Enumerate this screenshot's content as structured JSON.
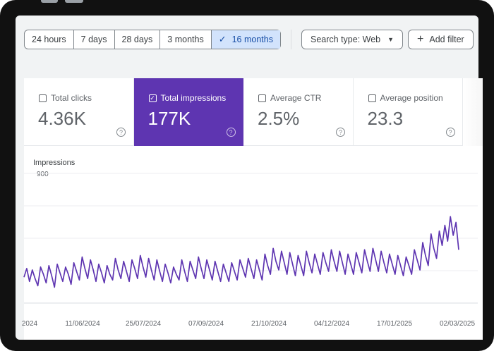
{
  "toolbar": {
    "date_ranges": [
      {
        "label": "24 hours",
        "active": false
      },
      {
        "label": "7 days",
        "active": false
      },
      {
        "label": "28 days",
        "active": false
      },
      {
        "label": "3 months",
        "active": false
      },
      {
        "label": "16 months",
        "active": true
      }
    ],
    "search_type_label": "Search type: Web",
    "add_filter_label": "Add filter"
  },
  "metrics": [
    {
      "label": "Total clicks",
      "value": "4.36K",
      "selected": false
    },
    {
      "label": "Total impressions",
      "value": "177K",
      "selected": true
    },
    {
      "label": "Average CTR",
      "value": "2.5%",
      "selected": false
    },
    {
      "label": "Average position",
      "value": "23.3",
      "selected": false
    }
  ],
  "chart_data": {
    "type": "line",
    "ylabel": "Impressions",
    "y_tick_labels": [
      "900"
    ],
    "ylim": [
      0,
      900
    ],
    "x_tick_labels": [
      "2024",
      "11/06/2024",
      "25/07/2024",
      "07/09/2024",
      "21/10/2024",
      "04/12/2024",
      "17/01/2025",
      "02/03/2025"
    ],
    "grid": true,
    "series": [
      {
        "color": "#5e35b1",
        "values": [
          180,
          240,
          150,
          230,
          170,
          120,
          250,
          200,
          140,
          260,
          190,
          110,
          270,
          210,
          150,
          250,
          200,
          130,
          280,
          220,
          160,
          320,
          240,
          170,
          300,
          230,
          150,
          270,
          210,
          140,
          260,
          200,
          160,
          310,
          230,
          170,
          290,
          220,
          150,
          300,
          240,
          170,
          330,
          250,
          180,
          310,
          230,
          160,
          300,
          220,
          150,
          270,
          210,
          140,
          250,
          200,
          160,
          300,
          220,
          150,
          290,
          230,
          170,
          320,
          240,
          170,
          300,
          230,
          160,
          290,
          220,
          150,
          270,
          210,
          150,
          280,
          220,
          160,
          300,
          240,
          180,
          310,
          240,
          170,
          300,
          230,
          160,
          340,
          260,
          200,
          380,
          290,
          230,
          360,
          280,
          200,
          350,
          270,
          190,
          330,
          260,
          190,
          360,
          280,
          210,
          340,
          270,
          200,
          350,
          280,
          220,
          370,
          290,
          220,
          360,
          280,
          200,
          340,
          270,
          200,
          350,
          280,
          210,
          370,
          290,
          220,
          380,
          300,
          220,
          360,
          280,
          210,
          340,
          270,
          200,
          330,
          260,
          190,
          320,
          260,
          200,
          370,
          300,
          230,
          420,
          330,
          260,
          480,
          380,
          310,
          500,
          400,
          540,
          430,
          600,
          470,
          560,
          370
        ]
      }
    ]
  }
}
